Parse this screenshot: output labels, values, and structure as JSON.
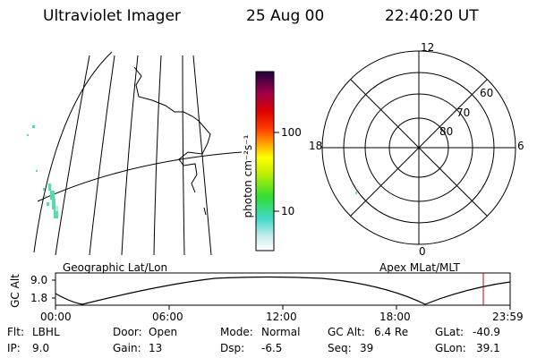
{
  "header": {
    "instrument": "Ultraviolet Imager",
    "date": "25 Aug 00",
    "time": "22:40:20 UT"
  },
  "colorbar": {
    "label": "photon cm⁻²s⁻¹",
    "ticks": [
      "100",
      "10"
    ]
  },
  "polar": {
    "labels": {
      "top": "12",
      "left": "18",
      "right": "6",
      "bottom": "0"
    },
    "rings": [
      "60",
      "70",
      "80"
    ]
  },
  "panel_labels": {
    "geo": "Geographic Lat/Lon",
    "apex": "Apex MLat/MLT"
  },
  "altitude": {
    "ylabel": "GC Alt",
    "yticks": [
      "9.0",
      "1.8"
    ],
    "xticks": [
      "00:00",
      "06:00",
      "12:00",
      "18:00",
      "23:59"
    ]
  },
  "status": {
    "filter_label": "Flt:",
    "filter_value": "LBHL",
    "ip_label": "IP:",
    "ip_value": "9.0",
    "door_label": "Door:",
    "door_value": "Open",
    "gain_label": "Gain:",
    "gain_value": "13",
    "mode_label": "Mode:",
    "mode_value": "Normal",
    "dsp_label": "Dsp:",
    "dsp_value": "-6.5",
    "gcalt_label": "GC Alt:",
    "gcalt_value": "6.4 Re",
    "seq_label": "Seq:",
    "seq_value": "39",
    "glat_label": "GLat:",
    "glat_value": "-40.9",
    "glon_label": "GLon:",
    "glon_value": "39.1"
  }
}
